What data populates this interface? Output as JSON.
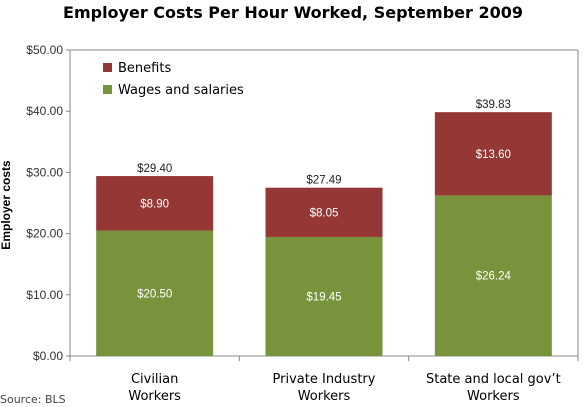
{
  "chart_data": {
    "type": "bar",
    "stacked": true,
    "title": "Employer Costs Per Hour Worked, September 2009",
    "ylabel": "Employer costs",
    "xlabel": "",
    "ylim": [
      0,
      50
    ],
    "yticks": [
      "$0.00",
      "$10.00",
      "$20.00",
      "$30.00",
      "$40.00",
      "$50.00"
    ],
    "grid": false,
    "legend_position": "top-left",
    "categories": [
      [
        "Civilian",
        "Workers"
      ],
      [
        "Private Industry",
        "Workers"
      ],
      [
        "State and local gov’t",
        "Workers"
      ]
    ],
    "series": [
      {
        "name": "Wages and salaries",
        "values": [
          20.5,
          19.45,
          26.24
        ],
        "labels": [
          "$20.50",
          "$19.45",
          "$26.24"
        ],
        "color": "#77933c"
      },
      {
        "name": "Benefits",
        "values": [
          8.9,
          8.05,
          13.6
        ],
        "labels": [
          "$8.90",
          "$8.05",
          "$13.60"
        ],
        "color": "#953735"
      }
    ],
    "totals": [
      29.4,
      27.49,
      39.83
    ],
    "total_labels": [
      "$29.40",
      "$27.49",
      "$39.83"
    ],
    "source": "Source: BLS"
  }
}
